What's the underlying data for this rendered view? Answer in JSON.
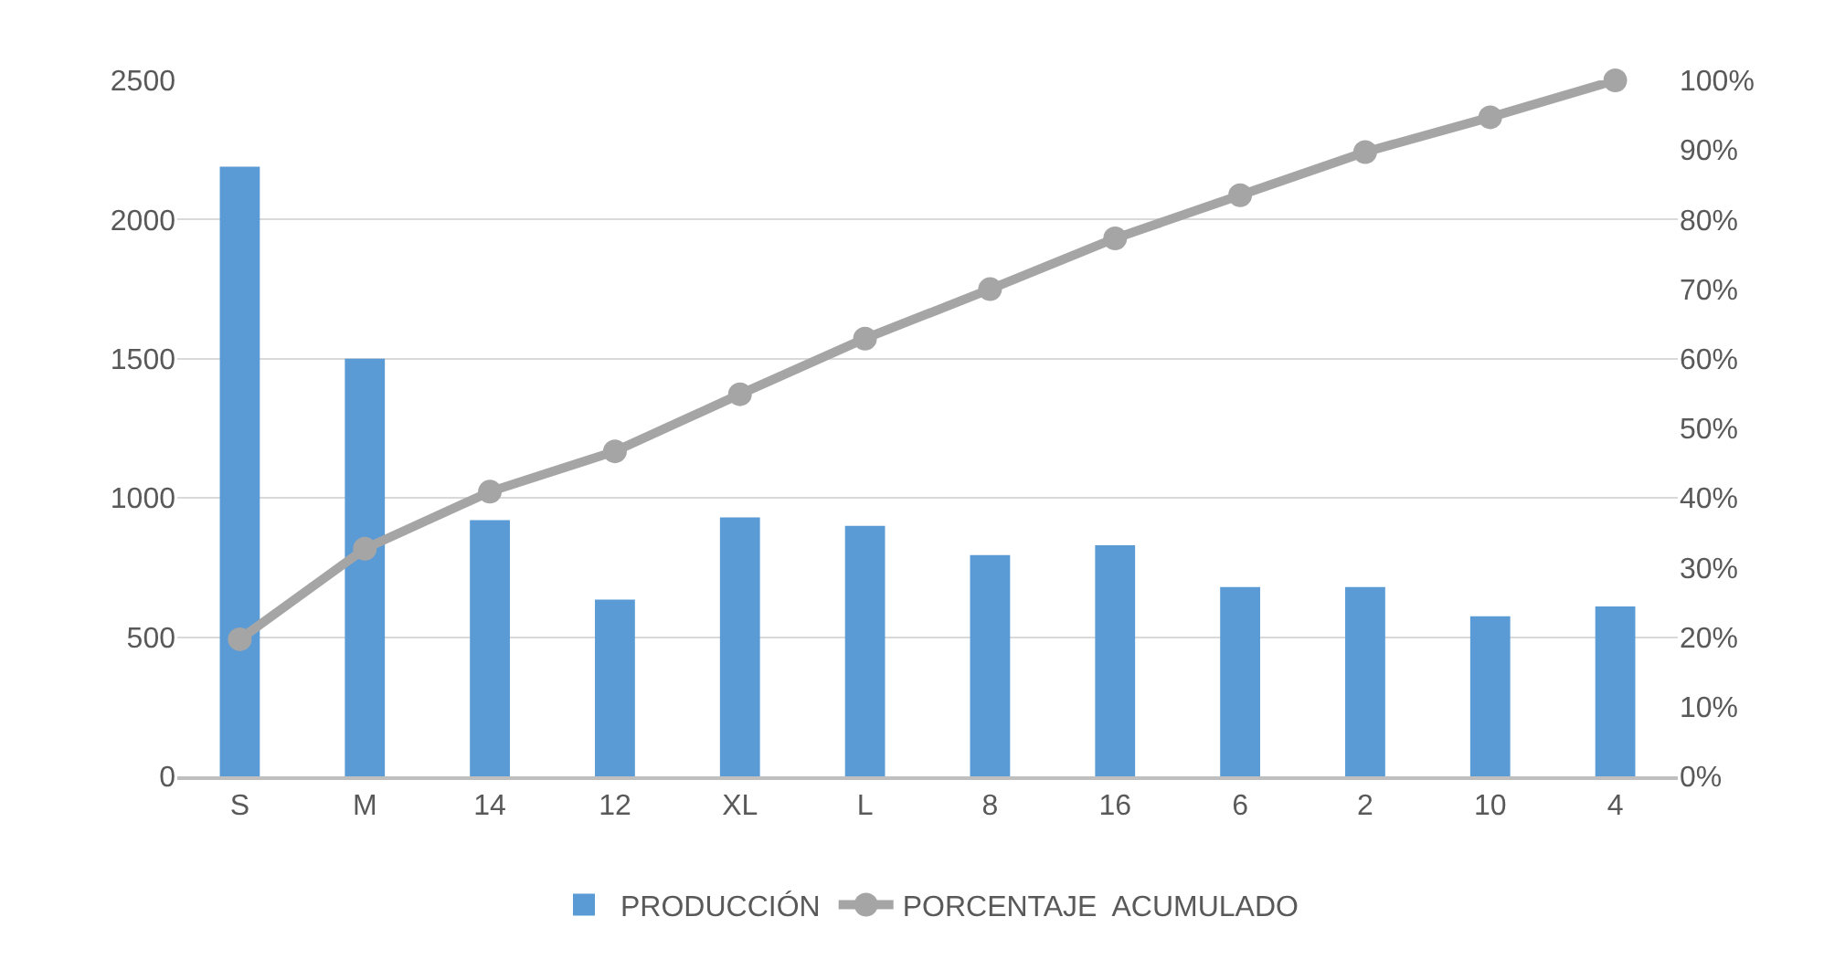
{
  "chart_data": {
    "type": "bar",
    "categories": [
      "S",
      "M",
      "14",
      "12",
      "XL",
      "L",
      "8",
      "16",
      "6",
      "2",
      "10",
      "4"
    ],
    "series": [
      {
        "name": "PRODUCCIÓN",
        "color": "#5b9bd5",
        "values": [
          2190,
          1500,
          920,
          635,
          930,
          900,
          795,
          830,
          680,
          680,
          575,
          610
        ]
      },
      {
        "name": "PORCENTAJE  ACUMULADO",
        "type": "line",
        "axis": "y2",
        "color": "#a5a5a5",
        "marker": "circle",
        "line_style": "solid",
        "values": [
          19.7,
          32.7,
          40.9,
          46.7,
          54.9,
          62.9,
          70.0,
          77.3,
          83.5,
          89.7,
          94.7,
          100
        ]
      }
    ],
    "ylim": [
      0,
      2500
    ],
    "yticks": [
      0,
      500,
      1000,
      1500,
      2000,
      2500
    ],
    "y2lim": [
      0,
      100
    ],
    "y2ticks": [
      {
        "value": 0,
        "label": "0%"
      },
      {
        "value": 10,
        "label": "10%"
      },
      {
        "value": 20,
        "label": "20%"
      },
      {
        "value": 30,
        "label": "30%"
      },
      {
        "value": 40,
        "label": "40%"
      },
      {
        "value": 50,
        "label": "50%"
      },
      {
        "value": 60,
        "label": "60%"
      },
      {
        "value": 70,
        "label": "70%"
      },
      {
        "value": 80,
        "label": "80%"
      },
      {
        "value": 90,
        "label": "90%"
      },
      {
        "value": 100,
        "label": "100%"
      }
    ],
    "grid": "y",
    "legend": "bottom"
  }
}
